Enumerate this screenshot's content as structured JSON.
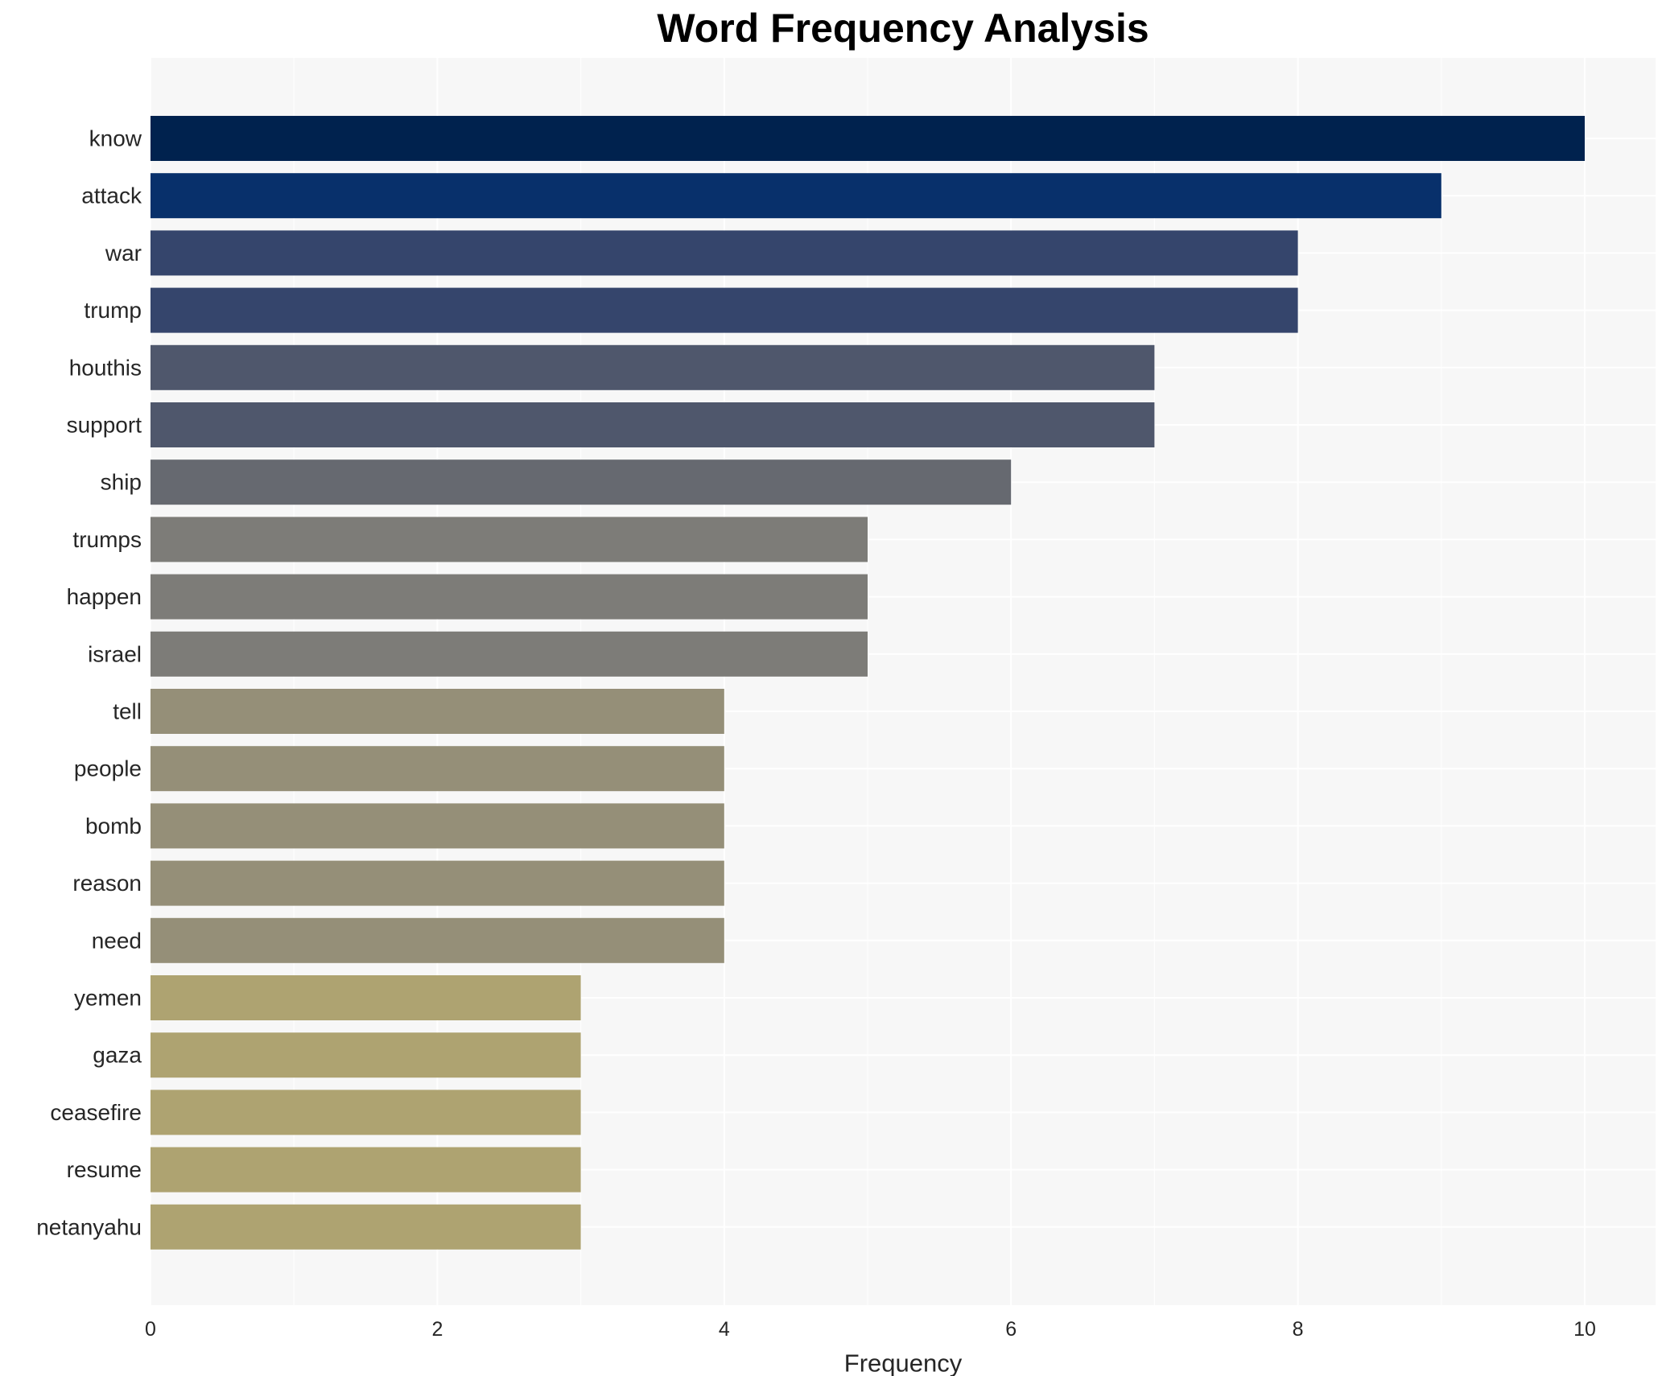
{
  "chart_data": {
    "type": "bar",
    "orientation": "horizontal",
    "title": "Word Frequency Analysis",
    "xlabel": "Frequency",
    "ylabel": "",
    "xlim": [
      0,
      10.5
    ],
    "x_ticks": [
      0,
      2,
      4,
      6,
      8,
      10
    ],
    "grid": true,
    "background": "#f7f7f7",
    "categories": [
      "know",
      "attack",
      "war",
      "trump",
      "houthis",
      "support",
      "ship",
      "trumps",
      "happen",
      "israel",
      "tell",
      "people",
      "bomb",
      "reason",
      "need",
      "yemen",
      "gaza",
      "ceasefire",
      "resume",
      "netanyahu"
    ],
    "values": [
      10,
      9,
      8,
      8,
      7,
      7,
      6,
      5,
      5,
      5,
      4,
      4,
      4,
      4,
      4,
      3,
      3,
      3,
      3,
      3
    ],
    "colors": [
      "#00224e",
      "#08306b",
      "#35456c",
      "#35456c",
      "#4f576c",
      "#4f576c",
      "#666970",
      "#7d7c78",
      "#7d7c78",
      "#7d7c78",
      "#958f78",
      "#958f78",
      "#958f78",
      "#958f78",
      "#958f78",
      "#aea371",
      "#aea371",
      "#aea371",
      "#aea371",
      "#aea371"
    ]
  }
}
